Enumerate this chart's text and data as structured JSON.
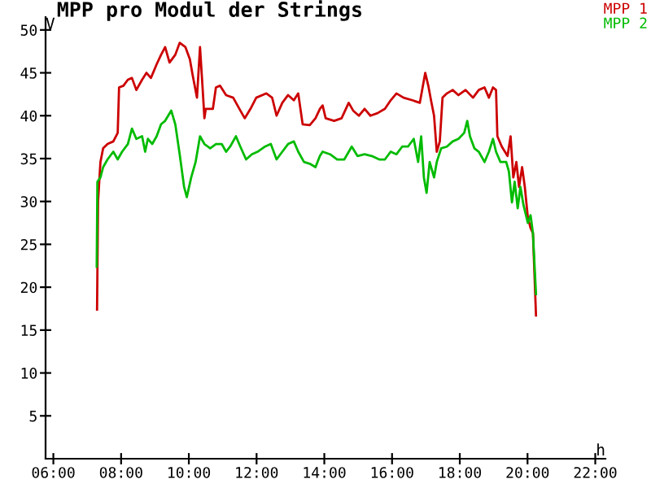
{
  "chart_data": {
    "type": "line",
    "title": "MPP pro Modul der Strings",
    "xlabel": "h",
    "ylabel": "V",
    "xlim": [
      5.77,
      22.3
    ],
    "ylim": [
      0,
      51.5
    ],
    "xticks": [
      {
        "value": 6,
        "label": "06:00"
      },
      {
        "value": 8,
        "label": "08:00"
      },
      {
        "value": 10,
        "label": "10:00"
      },
      {
        "value": 12,
        "label": "12:00"
      },
      {
        "value": 14,
        "label": "14:00"
      },
      {
        "value": 16,
        "label": "16:00"
      },
      {
        "value": 18,
        "label": "18:00"
      },
      {
        "value": 20,
        "label": "20:00"
      },
      {
        "value": 22,
        "label": "22:00"
      }
    ],
    "yticks": [
      5,
      10,
      15,
      20,
      25,
      30,
      35,
      40,
      45,
      50
    ],
    "grid": false,
    "legend": "top right",
    "marker": "none",
    "line_style": "solid",
    "series": [
      {
        "name": "MPP 1",
        "color": "#cc0000",
        "x": [
          7.29,
          7.32,
          7.39,
          7.47,
          7.6,
          7.77,
          7.9,
          7.94,
          8.07,
          8.2,
          8.32,
          8.45,
          8.62,
          8.75,
          8.88,
          9.05,
          9.18,
          9.3,
          9.43,
          9.6,
          9.73,
          9.9,
          10.03,
          10.11,
          10.24,
          10.33,
          10.41,
          10.46,
          10.5,
          10.71,
          10.8,
          10.92,
          11.1,
          11.31,
          11.52,
          11.65,
          11.82,
          11.99,
          12.29,
          12.46,
          12.59,
          12.76,
          12.93,
          13.1,
          13.23,
          13.36,
          13.57,
          13.74,
          13.87,
          13.95,
          14.04,
          14.29,
          14.51,
          14.72,
          14.85,
          15.02,
          15.19,
          15.36,
          15.57,
          15.79,
          15.96,
          16.13,
          16.34,
          16.6,
          16.82,
          16.98,
          17.07,
          17.15,
          17.24,
          17.32,
          17.41,
          17.49,
          17.62,
          17.79,
          17.96,
          18.17,
          18.39,
          18.56,
          18.73,
          18.86,
          18.98,
          19.07,
          19.11,
          19.24,
          19.41,
          19.5,
          19.58,
          19.67,
          19.75,
          19.84,
          19.92,
          20.01,
          20.09,
          20.16,
          20.25
        ],
        "values": [
          17.4,
          30,
          34.6,
          36.2,
          36.7,
          37,
          38,
          43.3,
          43.5,
          44.2,
          44.4,
          43,
          44.2,
          45,
          44.4,
          46,
          47.1,
          48,
          46.2,
          47.1,
          48.5,
          48,
          46.6,
          44.8,
          42.1,
          48,
          43,
          39.7,
          40.8,
          40.8,
          43.3,
          43.5,
          42.4,
          42.1,
          40.6,
          39.7,
          40.8,
          42.1,
          42.6,
          42.1,
          40,
          41.5,
          42.4,
          41.8,
          42.6,
          39,
          38.9,
          39.7,
          40.8,
          41.2,
          39.7,
          39.4,
          39.7,
          41.5,
          40.6,
          40,
          40.8,
          40,
          40.3,
          40.8,
          41.8,
          42.6,
          42.1,
          41.8,
          41.5,
          45,
          43.5,
          41.8,
          40,
          35.8,
          37,
          42.1,
          42.6,
          43,
          42.4,
          43,
          42.1,
          43,
          43.3,
          42.1,
          43.3,
          43,
          37.6,
          36.4,
          35.3,
          37.6,
          32.8,
          34.6,
          31.7,
          34,
          31.7,
          28.1,
          26.9,
          26.3,
          16.7
        ]
      },
      {
        "name": "MPP 2",
        "color": "#00bb00",
        "x": [
          7.28,
          7.3,
          7.39,
          7.47,
          7.6,
          7.77,
          7.9,
          8.03,
          8.2,
          8.32,
          8.45,
          8.62,
          8.71,
          8.79,
          8.92,
          9.05,
          9.18,
          9.3,
          9.48,
          9.6,
          9.73,
          9.86,
          9.94,
          10.07,
          10.2,
          10.33,
          10.46,
          10.63,
          10.8,
          10.97,
          11.1,
          11.22,
          11.39,
          11.52,
          11.69,
          11.86,
          12.03,
          12.25,
          12.42,
          12.59,
          12.76,
          12.93,
          13.1,
          13.23,
          13.4,
          13.57,
          13.74,
          13.87,
          13.95,
          14.17,
          14.38,
          14.59,
          14.81,
          14.98,
          15.19,
          15.4,
          15.62,
          15.79,
          15.96,
          16.13,
          16.3,
          16.47,
          16.64,
          16.77,
          16.86,
          16.94,
          17.02,
          17.11,
          17.24,
          17.32,
          17.45,
          17.62,
          17.79,
          17.96,
          18.13,
          18.22,
          18.3,
          18.43,
          18.56,
          18.73,
          18.86,
          18.98,
          19.07,
          19.2,
          19.37,
          19.45,
          19.54,
          19.62,
          19.71,
          19.79,
          19.88,
          20.01,
          20.09,
          20.16,
          20.25
        ],
        "values": [
          22.4,
          32.3,
          32.8,
          34,
          34.9,
          35.8,
          34.9,
          35.8,
          36.7,
          38.5,
          37.3,
          37.6,
          35.8,
          37.3,
          36.7,
          37.6,
          39,
          39.4,
          40.6,
          39,
          35.5,
          31.7,
          30.5,
          32.8,
          34.6,
          37.6,
          36.7,
          36.2,
          36.7,
          36.7,
          35.8,
          36.4,
          37.6,
          36.4,
          34.9,
          35.5,
          35.8,
          36.4,
          36.7,
          34.9,
          35.8,
          36.7,
          37,
          35.8,
          34.6,
          34.4,
          34,
          35.3,
          35.8,
          35.5,
          34.9,
          34.9,
          36.4,
          35.3,
          35.5,
          35.3,
          34.9,
          34.9,
          35.8,
          35.5,
          36.4,
          36.4,
          37.3,
          34.6,
          37.6,
          32.8,
          31,
          34.6,
          32.8,
          34.6,
          36.2,
          36.4,
          37,
          37.3,
          38,
          39.4,
          37.6,
          36.2,
          35.8,
          34.6,
          35.8,
          37.3,
          35.8,
          34.6,
          34.6,
          33.5,
          29.9,
          32.3,
          29.2,
          31.7,
          29.6,
          27.5,
          28.4,
          26.3,
          19.2
        ]
      }
    ]
  }
}
